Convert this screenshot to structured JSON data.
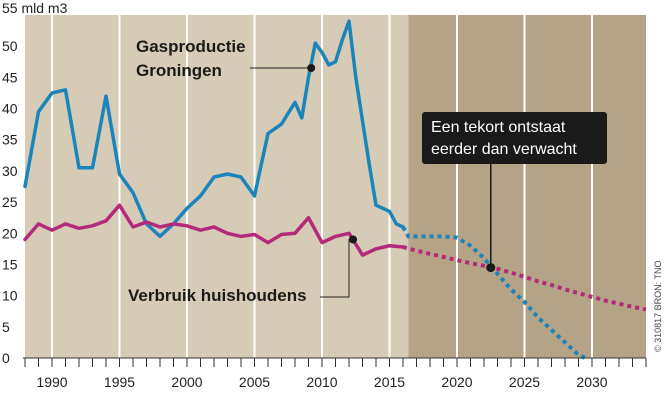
{
  "chart_data": {
    "type": "line",
    "x_range": [
      1988,
      2034
    ],
    "ylim": [
      0,
      55
    ],
    "y_unit_label": "55 mld m3",
    "y_ticks": [
      0,
      5,
      10,
      15,
      20,
      25,
      30,
      35,
      40,
      45,
      50
    ],
    "x_ticks": [
      1990,
      1995,
      2000,
      2005,
      2010,
      2015,
      2020,
      2025,
      2030
    ],
    "forecast_from": 2016.4,
    "series": [
      {
        "name": "Gasproductie Groningen",
        "color": "#1b84bb",
        "values": [
          [
            1988,
            27.5
          ],
          [
            1989,
            39.5
          ],
          [
            1990,
            42.5
          ],
          [
            1991,
            43.0
          ],
          [
            1992,
            30.5
          ],
          [
            1993,
            30.5
          ],
          [
            1994,
            42.0
          ],
          [
            1995,
            29.5
          ],
          [
            1996,
            26.5
          ],
          [
            1997,
            21.5
          ],
          [
            1998,
            19.5
          ],
          [
            1999,
            21.5
          ],
          [
            2000,
            24.0
          ],
          [
            2001,
            26.0
          ],
          [
            2002,
            29.0
          ],
          [
            2003,
            29.5
          ],
          [
            2004,
            29.0
          ],
          [
            2005,
            26.0
          ],
          [
            2006,
            36.0
          ],
          [
            2007,
            37.5
          ],
          [
            2008,
            41.0
          ],
          [
            2008.5,
            38.5
          ],
          [
            2009,
            45.0
          ],
          [
            2009.5,
            50.5
          ],
          [
            2010,
            49.0
          ],
          [
            2010.5,
            47.0
          ],
          [
            2011,
            47.5
          ],
          [
            2011.5,
            51.0
          ],
          [
            2012,
            54.0
          ],
          [
            2012.5,
            45.0
          ],
          [
            2013,
            38.0
          ],
          [
            2013.5,
            31.0
          ],
          [
            2014,
            24.5
          ],
          [
            2014.5,
            24.0
          ],
          [
            2015,
            23.5
          ],
          [
            2015.5,
            21.5
          ],
          [
            2016,
            21.0
          ]
        ],
        "forecast": [
          [
            2016,
            21.0
          ],
          [
            2016.4,
            19.5
          ],
          [
            2017,
            19.5
          ],
          [
            2018,
            19.5
          ],
          [
            2019,
            19.5
          ],
          [
            2020,
            19.3
          ],
          [
            2021,
            18.0
          ],
          [
            2022,
            16.0
          ],
          [
            2023,
            13.5
          ],
          [
            2024,
            11.0
          ],
          [
            2025,
            9.0
          ],
          [
            2026,
            6.5
          ],
          [
            2027,
            4.5
          ],
          [
            2028,
            2.5
          ],
          [
            2029,
            0.5
          ],
          [
            2029.5,
            0.0
          ]
        ]
      },
      {
        "name": "Verbruik huishoudens",
        "color": "#b32a7a",
        "values": [
          [
            1988,
            19.0
          ],
          [
            1989,
            21.5
          ],
          [
            1990,
            20.5
          ],
          [
            1991,
            21.5
          ],
          [
            1992,
            20.8
          ],
          [
            1993,
            21.2
          ],
          [
            1994,
            22.0
          ],
          [
            1995,
            24.5
          ],
          [
            1996,
            21.0
          ],
          [
            1997,
            21.8
          ],
          [
            1998,
            21.0
          ],
          [
            1999,
            21.5
          ],
          [
            2000,
            21.2
          ],
          [
            2001,
            20.5
          ],
          [
            2002,
            21.0
          ],
          [
            2003,
            20.0
          ],
          [
            2004,
            19.5
          ],
          [
            2005,
            19.8
          ],
          [
            2006,
            18.5
          ],
          [
            2007,
            19.8
          ],
          [
            2008,
            20.0
          ],
          [
            2009,
            22.5
          ],
          [
            2010,
            18.5
          ],
          [
            2011,
            19.5
          ],
          [
            2012,
            20.0
          ],
          [
            2013,
            16.5
          ],
          [
            2014,
            17.5
          ],
          [
            2015,
            18.0
          ],
          [
            2016,
            17.8
          ]
        ],
        "forecast": [
          [
            2016,
            17.8
          ],
          [
            2017,
            17.2
          ],
          [
            2018,
            16.7
          ],
          [
            2019,
            16.2
          ],
          [
            2020,
            15.7
          ],
          [
            2021,
            15.2
          ],
          [
            2022,
            14.8
          ],
          [
            2023,
            14.3
          ],
          [
            2024,
            13.7
          ],
          [
            2025,
            13.0
          ],
          [
            2026,
            12.3
          ],
          [
            2027,
            11.7
          ],
          [
            2028,
            11.0
          ],
          [
            2029,
            10.4
          ],
          [
            2030,
            9.8
          ],
          [
            2031,
            9.2
          ],
          [
            2032,
            8.7
          ],
          [
            2033,
            8.2
          ],
          [
            2034,
            7.8
          ]
        ]
      }
    ],
    "annotations": [
      {
        "id": "gas",
        "lines": [
          "Gasproductie",
          "Groningen"
        ],
        "point": [
          2009.2,
          46.5
        ]
      },
      {
        "id": "verbruik",
        "lines": [
          "Verbruik huishoudens"
        ],
        "point": [
          2012.3,
          19.0
        ]
      },
      {
        "id": "tekort",
        "lines": [
          "Een tekort ontstaat",
          "eerder dan verwacht"
        ],
        "point": [
          2022.5,
          14.5
        ]
      }
    ],
    "source_note": "© 310817 BRON: TNO",
    "colors": {
      "history_band": "#d6cbb6",
      "forecast_band": "#b4a386",
      "gridline": "#ffffff",
      "callout_box": "#1a1a1a"
    }
  }
}
